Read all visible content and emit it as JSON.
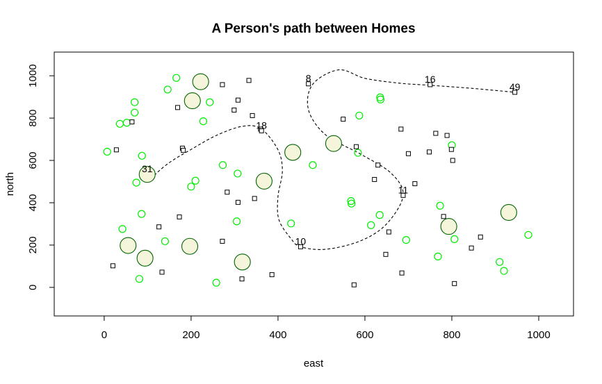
{
  "chart_data": {
    "type": "scatter",
    "title": "A Person's path between Homes",
    "xlabel": "east",
    "ylabel": "north",
    "xlim": [
      -115,
      1080
    ],
    "ylim": [
      -135,
      1112
    ],
    "x_ticks": [
      0,
      200,
      400,
      600,
      800,
      1000
    ],
    "y_ticks": [
      0,
      200,
      400,
      600,
      800,
      1000
    ],
    "grid": false,
    "legend": "none",
    "colors": {
      "home_marker": "#000000",
      "small_circle": "#00ee00",
      "large_circle_stroke": "#006400",
      "large_circle_fill": "#f5f5dc",
      "path": "#000000"
    },
    "homes": [
      {
        "x": 20,
        "y": 102
      },
      {
        "x": 28,
        "y": 650
      },
      {
        "x": 64,
        "y": 782
      },
      {
        "x": 126,
        "y": 286
      },
      {
        "x": 133,
        "y": 72
      },
      {
        "x": 169,
        "y": 850
      },
      {
        "x": 173,
        "y": 333
      },
      {
        "x": 180,
        "y": 658
      },
      {
        "x": 182,
        "y": 648
      },
      {
        "x": 272,
        "y": 958
      },
      {
        "x": 272,
        "y": 218
      },
      {
        "x": 283,
        "y": 450
      },
      {
        "x": 299,
        "y": 838
      },
      {
        "x": 308,
        "y": 885
      },
      {
        "x": 308,
        "y": 402
      },
      {
        "x": 317,
        "y": 40
      },
      {
        "x": 333,
        "y": 978
      },
      {
        "x": 341,
        "y": 812
      },
      {
        "x": 346,
        "y": 420
      },
      {
        "x": 360,
        "y": 748
      },
      {
        "x": 362,
        "y": 740
      },
      {
        "x": 386,
        "y": 60
      },
      {
        "x": 452,
        "y": 192
      },
      {
        "x": 470,
        "y": 962
      },
      {
        "x": 550,
        "y": 795
      },
      {
        "x": 575,
        "y": 12
      },
      {
        "x": 580,
        "y": 665
      },
      {
        "x": 622,
        "y": 510
      },
      {
        "x": 630,
        "y": 578
      },
      {
        "x": 648,
        "y": 156
      },
      {
        "x": 655,
        "y": 262
      },
      {
        "x": 683,
        "y": 748
      },
      {
        "x": 685,
        "y": 68
      },
      {
        "x": 688,
        "y": 435
      },
      {
        "x": 700,
        "y": 632
      },
      {
        "x": 715,
        "y": 490
      },
      {
        "x": 748,
        "y": 640
      },
      {
        "x": 750,
        "y": 958
      },
      {
        "x": 763,
        "y": 728
      },
      {
        "x": 781,
        "y": 335
      },
      {
        "x": 789,
        "y": 718
      },
      {
        "x": 799,
        "y": 652
      },
      {
        "x": 802,
        "y": 600
      },
      {
        "x": 806,
        "y": 18
      },
      {
        "x": 845,
        "y": 186
      },
      {
        "x": 866,
        "y": 238
      },
      {
        "x": 945,
        "y": 922
      }
    ],
    "small_circles": [
      {
        "x": 7,
        "y": 641
      },
      {
        "x": 36,
        "y": 773
      },
      {
        "x": 42,
        "y": 276
      },
      {
        "x": 52,
        "y": 778
      },
      {
        "x": 70,
        "y": 875
      },
      {
        "x": 70,
        "y": 826
      },
      {
        "x": 74,
        "y": 495
      },
      {
        "x": 81,
        "y": 40
      },
      {
        "x": 86,
        "y": 347
      },
      {
        "x": 87,
        "y": 622
      },
      {
        "x": 140,
        "y": 218
      },
      {
        "x": 146,
        "y": 935
      },
      {
        "x": 166,
        "y": 990
      },
      {
        "x": 200,
        "y": 476
      },
      {
        "x": 210,
        "y": 504
      },
      {
        "x": 228,
        "y": 785
      },
      {
        "x": 243,
        "y": 875
      },
      {
        "x": 258,
        "y": 22
      },
      {
        "x": 273,
        "y": 578
      },
      {
        "x": 305,
        "y": 312
      },
      {
        "x": 307,
        "y": 538
      },
      {
        "x": 430,
        "y": 302
      },
      {
        "x": 480,
        "y": 578
      },
      {
        "x": 568,
        "y": 408
      },
      {
        "x": 569,
        "y": 396
      },
      {
        "x": 584,
        "y": 636
      },
      {
        "x": 587,
        "y": 812
      },
      {
        "x": 614,
        "y": 294
      },
      {
        "x": 634,
        "y": 342
      },
      {
        "x": 635,
        "y": 898
      },
      {
        "x": 636,
        "y": 888
      },
      {
        "x": 695,
        "y": 224
      },
      {
        "x": 768,
        "y": 146
      },
      {
        "x": 773,
        "y": 386
      },
      {
        "x": 800,
        "y": 672
      },
      {
        "x": 806,
        "y": 228
      },
      {
        "x": 910,
        "y": 120
      },
      {
        "x": 920,
        "y": 78
      },
      {
        "x": 976,
        "y": 248
      }
    ],
    "large_circles": [
      {
        "x": 55,
        "y": 198
      },
      {
        "x": 94,
        "y": 138
      },
      {
        "x": 99,
        "y": 534
      },
      {
        "x": 197,
        "y": 194
      },
      {
        "x": 203,
        "y": 882
      },
      {
        "x": 222,
        "y": 972
      },
      {
        "x": 318,
        "y": 120
      },
      {
        "x": 368,
        "y": 502
      },
      {
        "x": 434,
        "y": 638
      },
      {
        "x": 528,
        "y": 680
      },
      {
        "x": 793,
        "y": 288
      },
      {
        "x": 931,
        "y": 354
      }
    ],
    "labels": [
      {
        "text": "31",
        "x": 99,
        "y": 534
      },
      {
        "text": "18",
        "x": 362,
        "y": 740
      },
      {
        "text": "8",
        "x": 470,
        "y": 962
      },
      {
        "text": "16",
        "x": 750,
        "y": 958
      },
      {
        "text": "49",
        "x": 945,
        "y": 922
      },
      {
        "text": "11",
        "x": 688,
        "y": 435
      },
      {
        "text": "10",
        "x": 452,
        "y": 192
      }
    ],
    "path": [
      {
        "x": 115,
        "y": 530
      },
      {
        "x": 150,
        "y": 590
      },
      {
        "x": 200,
        "y": 652
      },
      {
        "x": 260,
        "y": 720
      },
      {
        "x": 320,
        "y": 762
      },
      {
        "x": 362,
        "y": 748
      },
      {
        "x": 400,
        "y": 650
      },
      {
        "x": 410,
        "y": 550
      },
      {
        "x": 400,
        "y": 430
      },
      {
        "x": 402,
        "y": 320
      },
      {
        "x": 430,
        "y": 230
      },
      {
        "x": 452,
        "y": 192
      },
      {
        "x": 510,
        "y": 180
      },
      {
        "x": 590,
        "y": 220
      },
      {
        "x": 650,
        "y": 300
      },
      {
        "x": 688,
        "y": 435
      },
      {
        "x": 660,
        "y": 540
      },
      {
        "x": 590,
        "y": 630
      },
      {
        "x": 510,
        "y": 720
      },
      {
        "x": 470,
        "y": 840
      },
      {
        "x": 480,
        "y": 960
      },
      {
        "x": 540,
        "y": 1028
      },
      {
        "x": 600,
        "y": 988
      },
      {
        "x": 680,
        "y": 965
      },
      {
        "x": 750,
        "y": 955
      },
      {
        "x": 850,
        "y": 940
      },
      {
        "x": 945,
        "y": 922
      }
    ]
  }
}
